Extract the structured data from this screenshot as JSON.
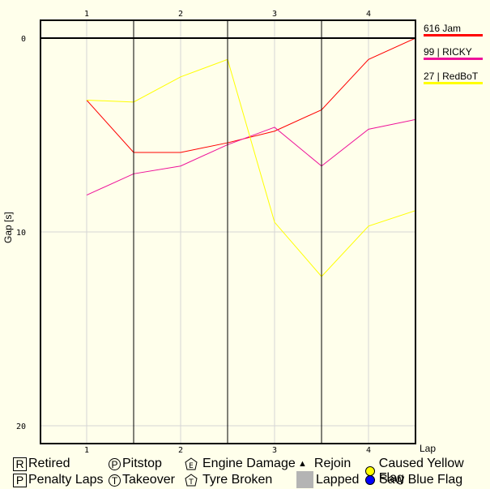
{
  "chart_data": {
    "type": "line",
    "title": "",
    "xlabel": "Lap",
    "ylabel": "Gap [s]",
    "x_ticks": [
      "1",
      "2",
      "3",
      "4"
    ],
    "y_ticks": [
      "0",
      "10",
      "20"
    ],
    "ylim": [
      -0.9,
      21
    ],
    "x": [
      1,
      1.5,
      2,
      2.5,
      3,
      3.5,
      4,
      4.5
    ],
    "grid": true,
    "legend_position": "right",
    "series": [
      {
        "name": "616 Jam",
        "color": "#FF0000",
        "values": [
          3.2,
          5.9,
          5.9,
          5.4,
          4.8,
          3.7,
          1.1,
          0.0
        ]
      },
      {
        "name": "99 | RICKY",
        "color": "#EE1199",
        "values": [
          8.1,
          7.0,
          6.6,
          5.5,
          4.6,
          6.6,
          4.7,
          4.2
        ]
      },
      {
        "name": "27 | RedBoT",
        "color": "#FFFF00",
        "values": [
          3.2,
          3.3,
          2.0,
          1.1,
          9.5,
          12.3,
          9.7,
          8.9
        ]
      }
    ]
  },
  "legend": [
    {
      "label": "616 Jam",
      "color": "#FF0000"
    },
    {
      "label": "99 | RICKY",
      "color": "#EE1199"
    },
    {
      "label": "27 | RedBoT",
      "color": "#FFFF00"
    }
  ],
  "axis": {
    "x_label": "Lap",
    "y_label": "Gap [s]"
  },
  "key": {
    "retired": {
      "glyph": "R",
      "label": "Retired"
    },
    "penalty": {
      "glyph": "P",
      "label": "Penalty Laps"
    },
    "pitstop": {
      "glyph": "P",
      "label": "Pitstop"
    },
    "takeover": {
      "glyph": "T",
      "label": "Takeover"
    },
    "engine": {
      "glyph": "E",
      "label": "Engine Damage"
    },
    "tyre": {
      "glyph": "T",
      "label": "Tyre Broken"
    },
    "rejoin": {
      "glyph": "▲",
      "label": "Rejoin"
    },
    "lapped": {
      "label": "Lapped",
      "color": "#B4B4B4"
    },
    "yellow": {
      "label": "Caused Yellow Flag",
      "color": "#FFFF00"
    },
    "blue": {
      "label": "Saw Blue Flag",
      "color": "#0000FF"
    }
  }
}
